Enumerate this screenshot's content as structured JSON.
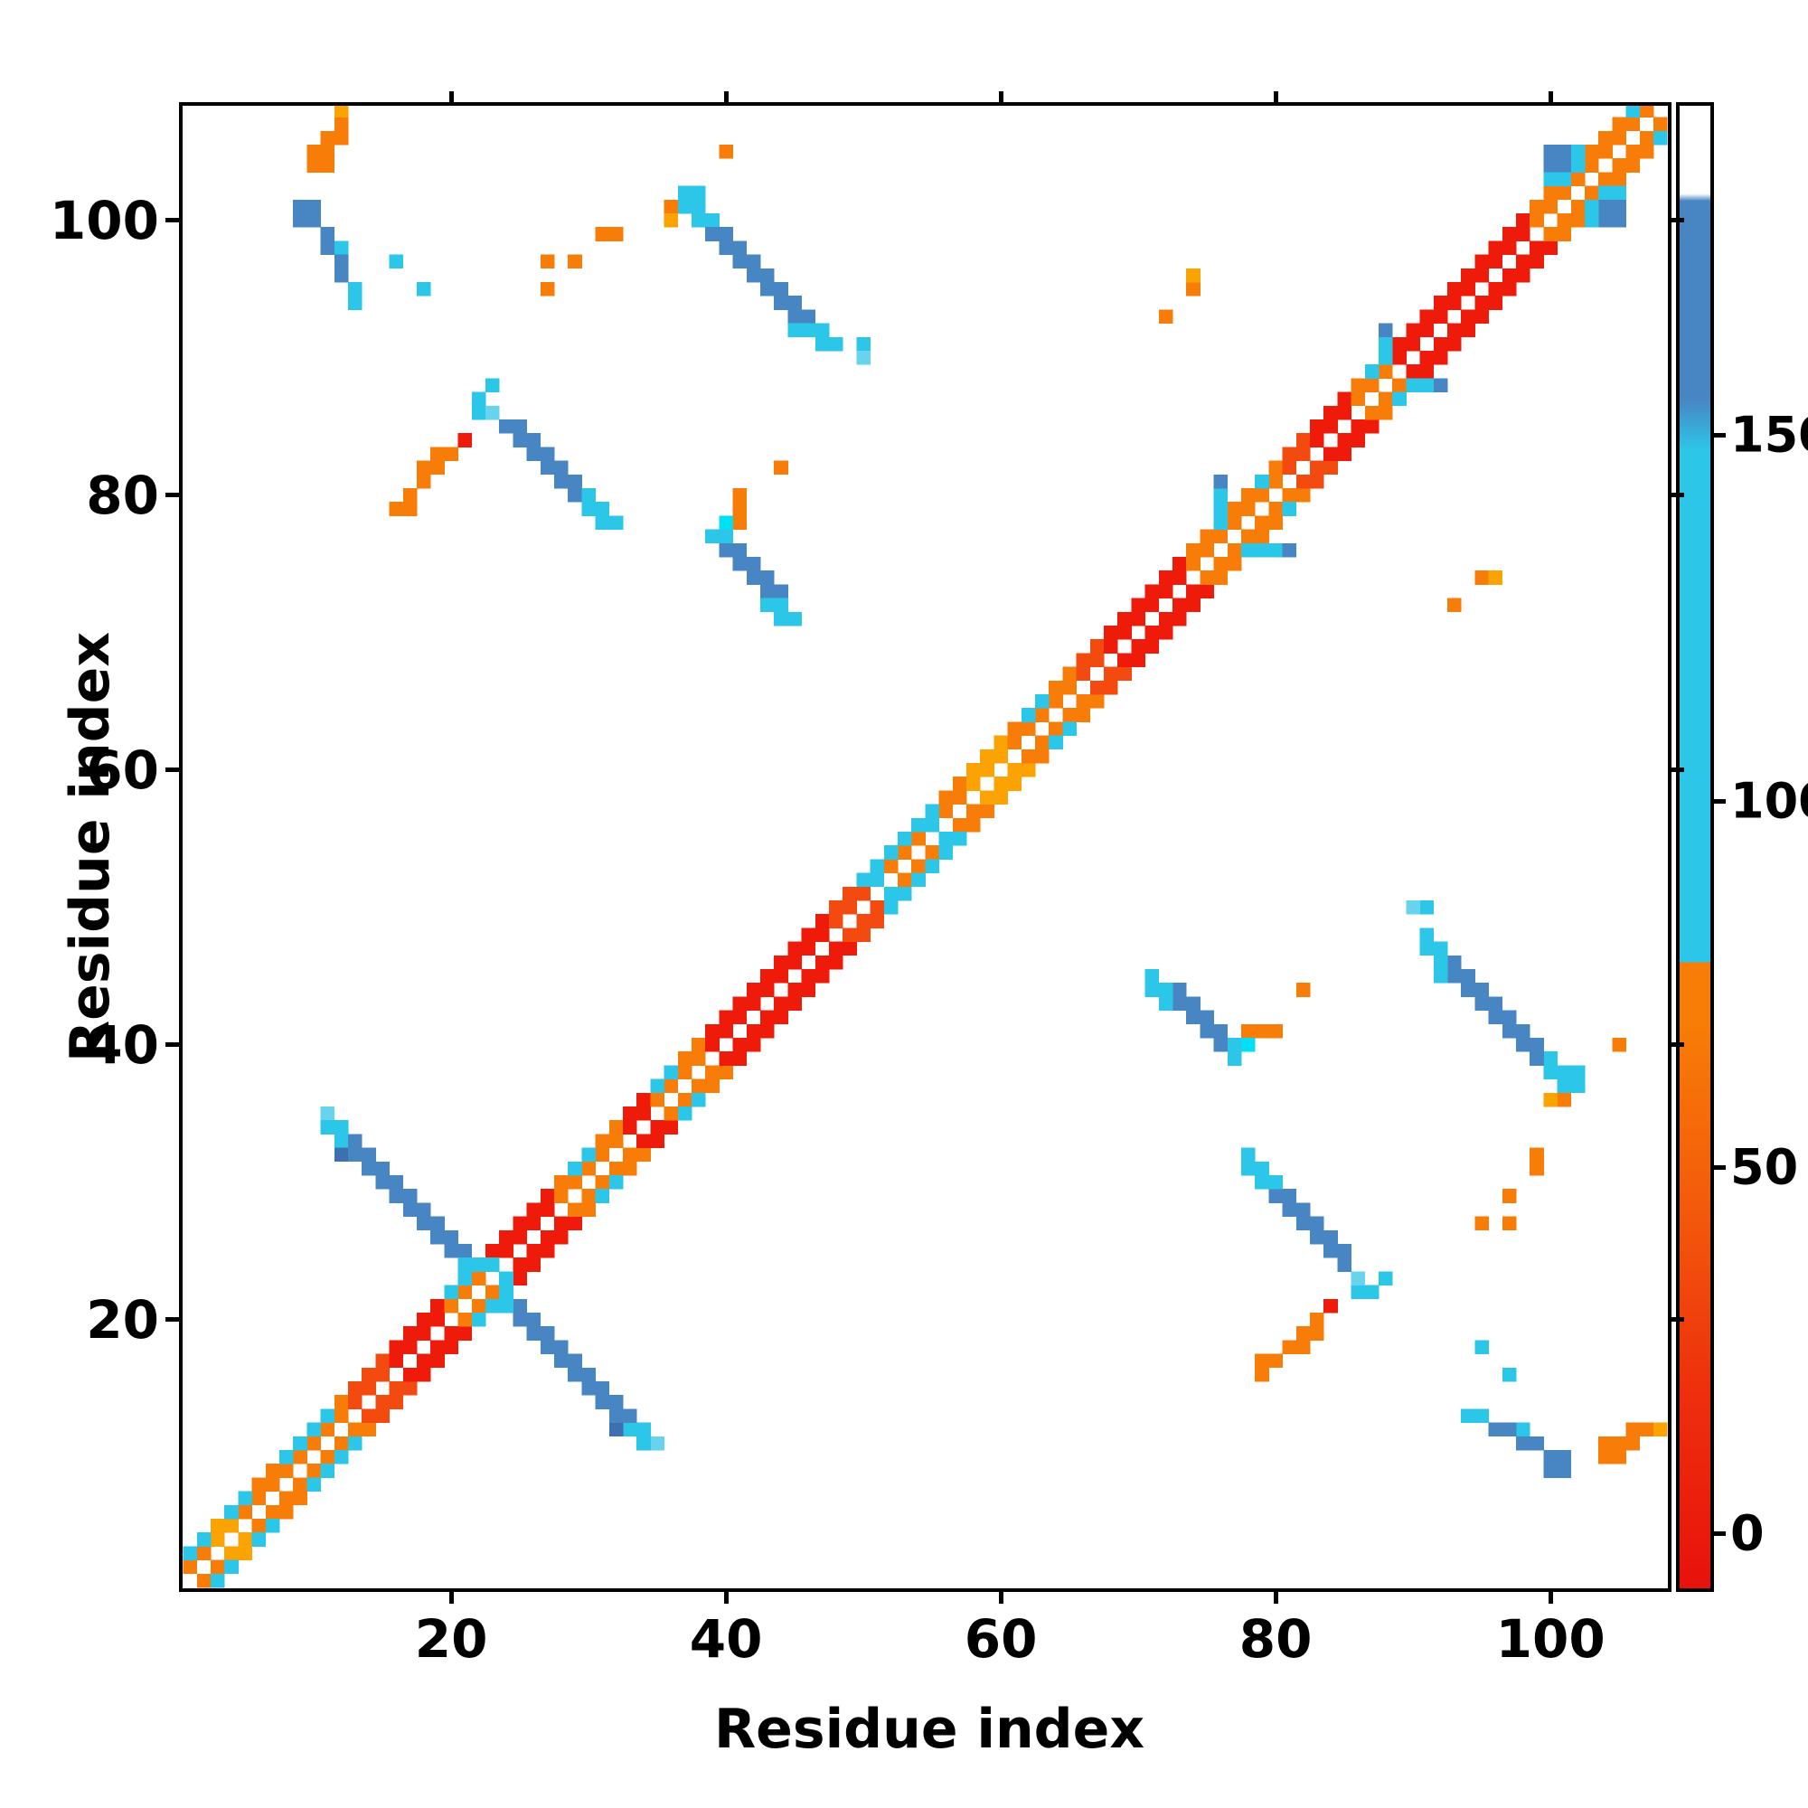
{
  "axes": {
    "xlabel": "Residue index",
    "ylabel": "Residue index",
    "x_ticks": [
      20,
      40,
      60,
      80,
      100
    ],
    "y_ticks": [
      20,
      40,
      60,
      80,
      100
    ],
    "x_range": [
      0.5,
      108.5
    ],
    "y_range": [
      0.5,
      108.5
    ]
  },
  "colorbar": {
    "ticks": [
      0,
      50,
      100,
      150
    ],
    "value_range": [
      -7.5,
      195
    ],
    "gradient_stops": [
      [
        -7.5,
        "#e8120c"
      ],
      [
        20,
        "#ee300d"
      ],
      [
        45,
        "#f35b0b"
      ],
      [
        70,
        "#f87d06"
      ],
      [
        78,
        "#f87d06"
      ],
      [
        78.01,
        "#2cc6e8"
      ],
      [
        148,
        "#2cc6e8"
      ],
      [
        155,
        "#4885c3"
      ],
      [
        182,
        "#4885c3"
      ],
      [
        183,
        "#ffffff"
      ],
      [
        195,
        "#ffffff"
      ]
    ]
  },
  "chart_data": {
    "type": "heatmap",
    "title": "",
    "xlabel": "Residue index",
    "ylabel": "Residue index",
    "n_residues": 108,
    "symmetric": true,
    "grid": false,
    "legend_position": "right-colorbar",
    "palette": {
      "R": "#ee1b0b",
      "OR": "#f34a10",
      "O": "#f87d08",
      "LO": "#fba303",
      "C": "#2cc6e8",
      "LC": "#67d3ec",
      "NC": "#00e0f5",
      "B": "#4885c3",
      "DB": "#3e70b1"
    },
    "diagonal_segments": [
      [
        1,
        2,
        "O"
      ],
      [
        3,
        4,
        "LO"
      ],
      [
        5,
        12,
        "O"
      ],
      [
        13,
        15,
        "OR"
      ],
      [
        16,
        19,
        "R"
      ],
      [
        20,
        22,
        "O"
      ],
      [
        23,
        27,
        "R"
      ],
      [
        28,
        32,
        "O"
      ],
      [
        33,
        34,
        "R"
      ],
      [
        35,
        38,
        "O"
      ],
      [
        39,
        47,
        "R"
      ],
      [
        48,
        50,
        "OR"
      ],
      [
        51,
        57,
        "O"
      ],
      [
        58,
        60,
        "LO"
      ],
      [
        61,
        65,
        "O"
      ],
      [
        66,
        67,
        "OR"
      ],
      [
        68,
        73,
        "R"
      ],
      [
        74,
        80,
        "O"
      ],
      [
        81,
        82,
        "OR"
      ],
      [
        83,
        85,
        "R"
      ],
      [
        86,
        88,
        "O"
      ],
      [
        89,
        98,
        "R"
      ],
      [
        99,
        107,
        "O"
      ]
    ],
    "cells": [
      [
        1,
        3,
        "C"
      ],
      [
        2,
        4,
        "C"
      ],
      [
        4,
        6,
        "C"
      ],
      [
        5,
        7,
        "C"
      ],
      [
        8,
        10,
        "C"
      ],
      [
        9,
        11,
        "C"
      ],
      [
        10,
        12,
        "C"
      ],
      [
        11,
        13,
        "C"
      ],
      [
        20,
        22,
        "C"
      ],
      [
        21,
        23,
        "C"
      ],
      [
        23,
        24,
        "C"
      ],
      [
        29,
        31,
        "C"
      ],
      [
        30,
        32,
        "C"
      ],
      [
        35,
        37,
        "C"
      ],
      [
        36,
        38,
        "C"
      ],
      [
        50,
        52,
        "C"
      ],
      [
        51,
        53,
        "C"
      ],
      [
        51,
        52,
        "C"
      ],
      [
        52,
        54,
        "C"
      ],
      [
        53,
        55,
        "C"
      ],
      [
        54,
        56,
        "C"
      ],
      [
        55,
        57,
        "C"
      ],
      [
        55,
        56,
        "C"
      ],
      [
        62,
        64,
        "C"
      ],
      [
        63,
        65,
        "C"
      ],
      [
        76,
        78,
        "C"
      ],
      [
        76,
        79,
        "C"
      ],
      [
        76,
        80,
        "C"
      ],
      [
        76,
        81,
        "B"
      ],
      [
        79,
        81,
        "C"
      ],
      [
        87,
        89,
        "C"
      ],
      [
        88,
        90,
        "C"
      ],
      [
        88,
        91,
        "C"
      ],
      [
        88,
        92,
        "B"
      ],
      [
        106,
        108,
        "C"
      ],
      [
        10,
        104,
        "O"
      ],
      [
        11,
        104,
        "O"
      ],
      [
        10,
        105,
        "O"
      ],
      [
        11,
        105,
        "O"
      ],
      [
        11,
        106,
        "O"
      ],
      [
        12,
        106,
        "O"
      ],
      [
        12,
        107,
        "O"
      ],
      [
        12,
        108,
        "LO"
      ],
      [
        9,
        100,
        "B"
      ],
      [
        10,
        100,
        "B"
      ],
      [
        9,
        101,
        "B"
      ],
      [
        10,
        101,
        "B"
      ],
      [
        11,
        99,
        "B"
      ],
      [
        11,
        98,
        "B"
      ],
      [
        12,
        98,
        "C"
      ],
      [
        12,
        97,
        "B"
      ],
      [
        12,
        96,
        "B"
      ],
      [
        13,
        95,
        "C"
      ],
      [
        13,
        94,
        "C"
      ],
      [
        16,
        97,
        "C"
      ],
      [
        18,
        95,
        "C"
      ],
      [
        27,
        97,
        "O"
      ],
      [
        29,
        97,
        "O"
      ],
      [
        27,
        95,
        "O"
      ],
      [
        31,
        99,
        "O"
      ],
      [
        32,
        99,
        "O"
      ],
      [
        40,
        105,
        "O"
      ],
      [
        44,
        82,
        "O"
      ],
      [
        72,
        93,
        "O"
      ],
      [
        74,
        95,
        "O"
      ],
      [
        74,
        96,
        "LO"
      ],
      [
        36,
        101,
        "O"
      ],
      [
        36,
        100,
        "LO"
      ],
      [
        37,
        102,
        "C"
      ],
      [
        38,
        102,
        "C"
      ],
      [
        37,
        101,
        "C"
      ],
      [
        38,
        101,
        "C"
      ],
      [
        38,
        100,
        "C"
      ],
      [
        39,
        100,
        "C"
      ],
      [
        39,
        99,
        "B"
      ],
      [
        40,
        99,
        "B"
      ],
      [
        40,
        98,
        "B"
      ],
      [
        41,
        98,
        "B"
      ],
      [
        41,
        97,
        "B"
      ],
      [
        42,
        97,
        "B"
      ],
      [
        42,
        96,
        "B"
      ],
      [
        43,
        96,
        "B"
      ],
      [
        43,
        95,
        "B"
      ],
      [
        44,
        95,
        "B"
      ],
      [
        44,
        94,
        "B"
      ],
      [
        45,
        94,
        "B"
      ],
      [
        45,
        93,
        "B"
      ],
      [
        46,
        93,
        "B"
      ],
      [
        45,
        92,
        "C"
      ],
      [
        46,
        92,
        "C"
      ],
      [
        47,
        92,
        "C"
      ],
      [
        47,
        91,
        "C"
      ],
      [
        48,
        91,
        "C"
      ],
      [
        50,
        91,
        "C"
      ],
      [
        50,
        90,
        "LC"
      ],
      [
        16,
        79,
        "O"
      ],
      [
        17,
        79,
        "O"
      ],
      [
        17,
        80,
        "O"
      ],
      [
        18,
        81,
        "O"
      ],
      [
        18,
        82,
        "O"
      ],
      [
        19,
        82,
        "O"
      ],
      [
        19,
        83,
        "O"
      ],
      [
        20,
        83,
        "O"
      ],
      [
        21,
        84,
        "R"
      ],
      [
        22,
        86,
        "C"
      ],
      [
        22,
        87,
        "C"
      ],
      [
        23,
        88,
        "C"
      ],
      [
        23,
        86,
        "LC"
      ],
      [
        24,
        85,
        "B"
      ],
      [
        25,
        85,
        "B"
      ],
      [
        25,
        84,
        "B"
      ],
      [
        26,
        84,
        "B"
      ],
      [
        26,
        83,
        "B"
      ],
      [
        27,
        83,
        "B"
      ],
      [
        27,
        82,
        "B"
      ],
      [
        28,
        82,
        "B"
      ],
      [
        28,
        81,
        "B"
      ],
      [
        29,
        81,
        "B"
      ],
      [
        29,
        80,
        "B"
      ],
      [
        30,
        80,
        "C"
      ],
      [
        30,
        79,
        "C"
      ],
      [
        31,
        79,
        "C"
      ],
      [
        31,
        78,
        "C"
      ],
      [
        32,
        78,
        "C"
      ],
      [
        41,
        80,
        "O"
      ],
      [
        41,
        79,
        "O"
      ],
      [
        41,
        78,
        "O"
      ],
      [
        40,
        78,
        "NC"
      ],
      [
        39,
        77,
        "C"
      ],
      [
        40,
        77,
        "C"
      ],
      [
        40,
        76,
        "B"
      ],
      [
        41,
        76,
        "B"
      ],
      [
        41,
        75,
        "B"
      ],
      [
        42,
        75,
        "B"
      ],
      [
        42,
        74,
        "B"
      ],
      [
        43,
        74,
        "B"
      ],
      [
        43,
        73,
        "B"
      ],
      [
        44,
        73,
        "B"
      ],
      [
        43,
        72,
        "C"
      ],
      [
        44,
        72,
        "C"
      ],
      [
        44,
        71,
        "C"
      ],
      [
        45,
        71,
        "C"
      ],
      [
        11,
        35,
        "LC"
      ],
      [
        11,
        34,
        "C"
      ],
      [
        12,
        34,
        "C"
      ],
      [
        12,
        33,
        "C"
      ],
      [
        12,
        32,
        "DB"
      ],
      [
        13,
        33,
        "B"
      ],
      [
        13,
        32,
        "B"
      ],
      [
        14,
        32,
        "B"
      ],
      [
        14,
        31,
        "B"
      ],
      [
        15,
        31,
        "B"
      ],
      [
        15,
        30,
        "B"
      ],
      [
        16,
        30,
        "B"
      ],
      [
        16,
        29,
        "B"
      ],
      [
        17,
        29,
        "B"
      ],
      [
        17,
        28,
        "B"
      ],
      [
        18,
        28,
        "B"
      ],
      [
        18,
        27,
        "B"
      ],
      [
        19,
        27,
        "B"
      ],
      [
        19,
        26,
        "B"
      ],
      [
        20,
        26,
        "B"
      ],
      [
        20,
        25,
        "B"
      ],
      [
        21,
        25,
        "B"
      ],
      [
        21,
        24,
        "C"
      ],
      [
        22,
        24,
        "C"
      ],
      [
        100,
        105,
        "B"
      ],
      [
        101,
        105,
        "B"
      ],
      [
        102,
        105,
        "C"
      ],
      [
        100,
        104,
        "B"
      ],
      [
        101,
        104,
        "B"
      ],
      [
        102,
        104,
        "C"
      ],
      [
        100,
        103,
        "C"
      ],
      [
        101,
        103,
        "C"
      ]
    ]
  }
}
